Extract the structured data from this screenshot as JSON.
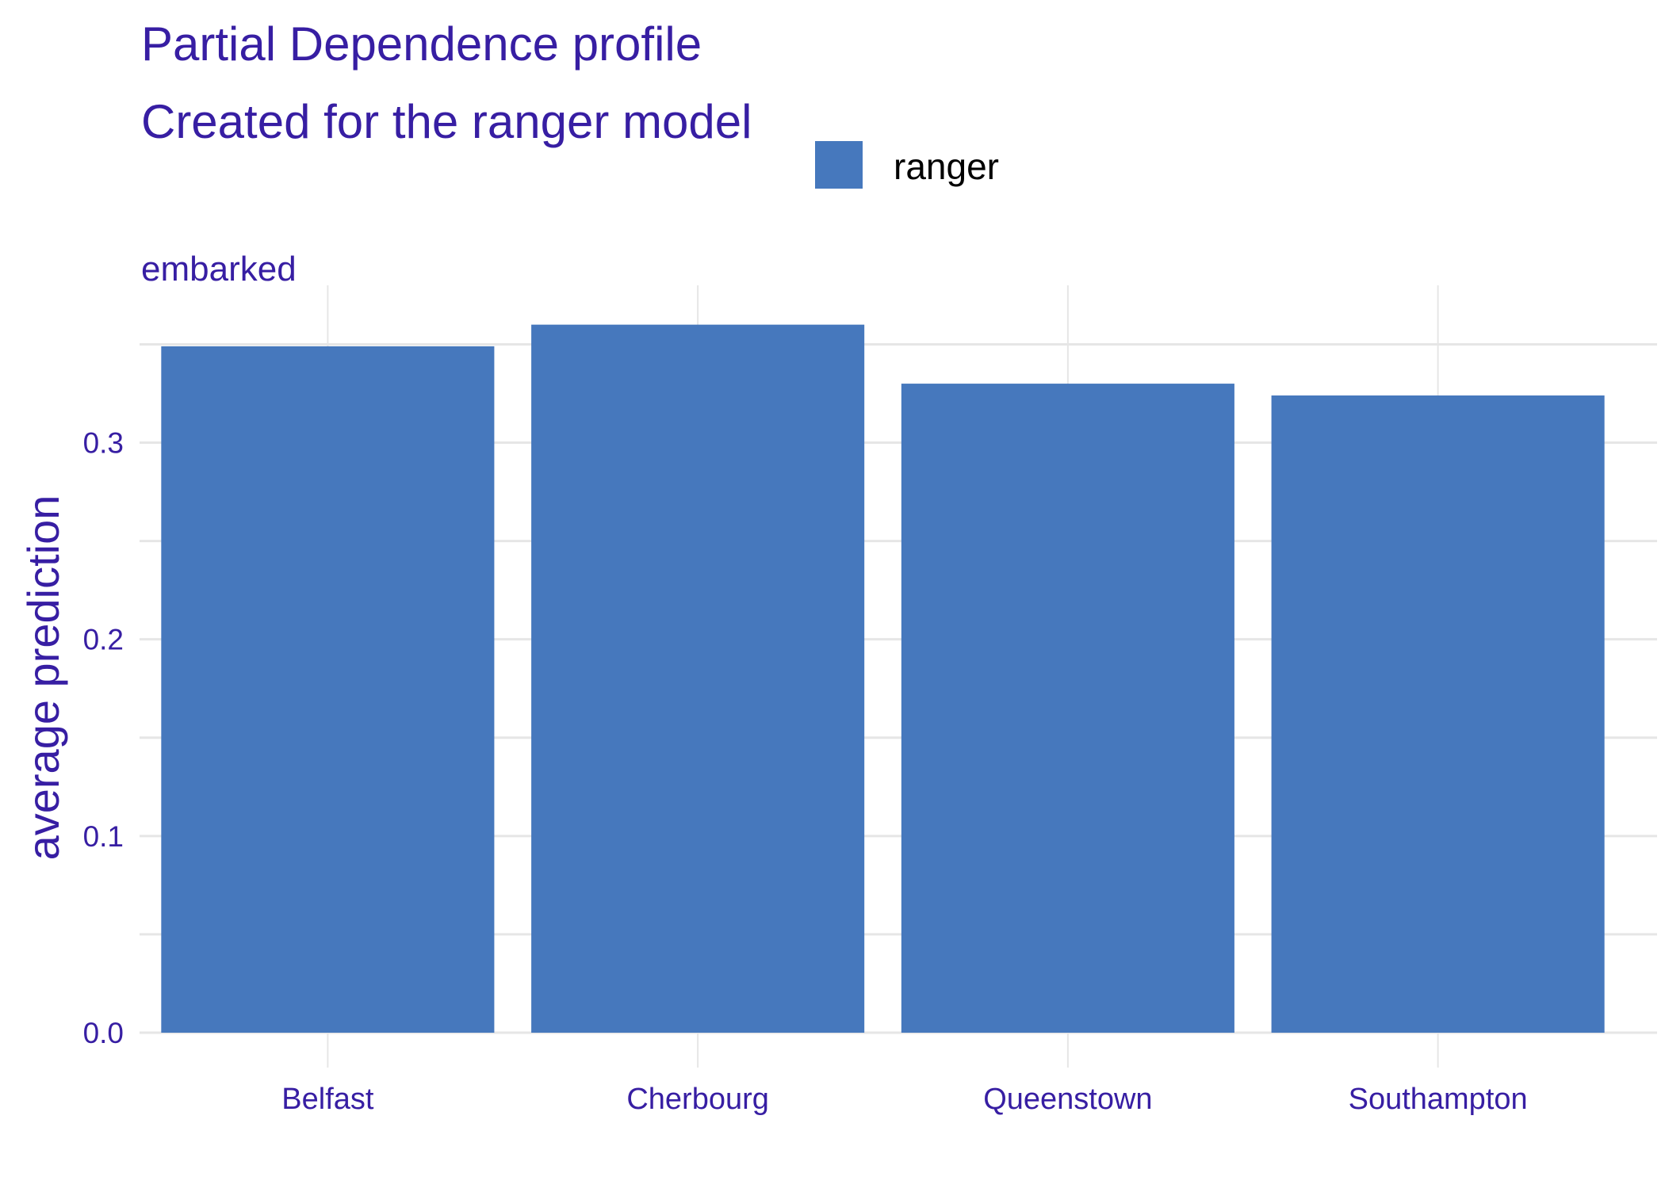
{
  "chart_data": {
    "type": "bar",
    "title": "Partial Dependence profile",
    "subtitle": "Created for the ranger model",
    "facet_label": "embarked",
    "xlabel": "",
    "ylabel": "average prediction",
    "categories": [
      "Belfast",
      "Cherbourg",
      "Queenstown",
      "Southampton"
    ],
    "series": [
      {
        "name": "ranger",
        "values": [
          0.349,
          0.36,
          0.33,
          0.324
        ]
      }
    ],
    "ylim": [
      0,
      0.38
    ],
    "y_ticks": [
      {
        "value": 0.0,
        "label": "0.0"
      },
      {
        "value": 0.1,
        "label": "0.1"
      },
      {
        "value": 0.2,
        "label": "0.2"
      },
      {
        "value": 0.3,
        "label": "0.3"
      }
    ],
    "y_minor_ticks": [
      0.05,
      0.15,
      0.25,
      0.35
    ],
    "grid": true,
    "legend_position": "top",
    "colors": {
      "bar": "#4678BD",
      "title": "#371EA3",
      "axis_text": "#371EA3",
      "legend_text": "#000000",
      "grid": "#E6E6E6"
    }
  }
}
